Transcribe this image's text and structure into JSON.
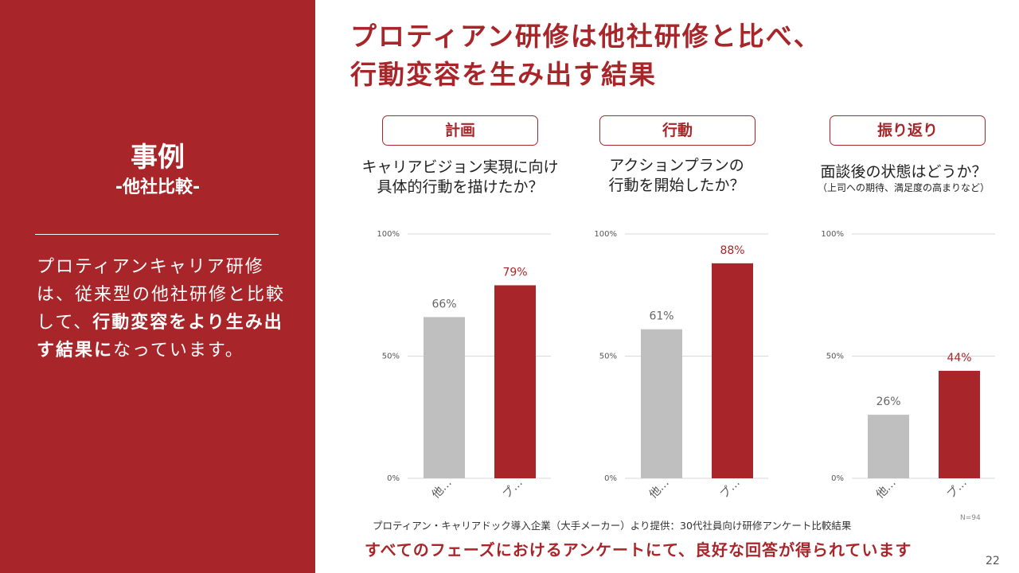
{
  "sidebar": {
    "title": "事例",
    "subtitle": "-他社比較-",
    "body_pre": "プロティアンキャリア研修は、従来型の他社研修と比較して、",
    "body_bold": "行動変容をより生み出す結果に",
    "body_post": "なっています。"
  },
  "headline": {
    "line1": "プロティアン研修は他社研修と比べ、",
    "line2": "行動変容を生み出す結果"
  },
  "phases": [
    {
      "label": "計画",
      "question_line1": "キャリアビジョン実現に向け",
      "question_line2": "具体的行動を描けたか？",
      "note": ""
    },
    {
      "label": "行動",
      "question_line1": "アクションプランの",
      "question_line2": "行動を開始したか？",
      "note": ""
    },
    {
      "label": "振り返り",
      "question_line1": "面談後の状態はどうか？",
      "question_line2": "",
      "note": "（上司への期待、満足度の高まりなど）"
    }
  ],
  "colors": {
    "accent": "#a8262a",
    "other_bar": "#bfbfbf",
    "protean_bar": "#a8262a"
  },
  "chart_data": [
    {
      "type": "bar",
      "categories": [
        "他…",
        "プ…"
      ],
      "values": [
        66,
        79
      ],
      "value_labels": [
        "66%",
        "79%"
      ],
      "ylim": [
        0,
        100
      ],
      "yticks": [
        "0%",
        "50%",
        "100%"
      ],
      "grid": true
    },
    {
      "type": "bar",
      "categories": [
        "他…",
        "プ…"
      ],
      "values": [
        61,
        88
      ],
      "value_labels": [
        "61%",
        "88%"
      ],
      "ylim": [
        0,
        100
      ],
      "yticks": [
        "0%",
        "50%",
        "100%"
      ],
      "grid": true
    },
    {
      "type": "bar",
      "categories": [
        "他…",
        "プ…"
      ],
      "values": [
        26,
        44
      ],
      "value_labels": [
        "26%",
        "44%"
      ],
      "ylim": [
        0,
        100
      ],
      "yticks": [
        "0%",
        "50%",
        "100%"
      ],
      "grid": true
    }
  ],
  "source": "プロティアン・キャリアドック導入企業（大手メーカー）より提供：30代社員向け研修アンケート比較結果",
  "n_label": "N=94",
  "conclusion": "すべてのフェーズにおけるアンケートにて、良好な回答が得られています",
  "page_number": "22"
}
